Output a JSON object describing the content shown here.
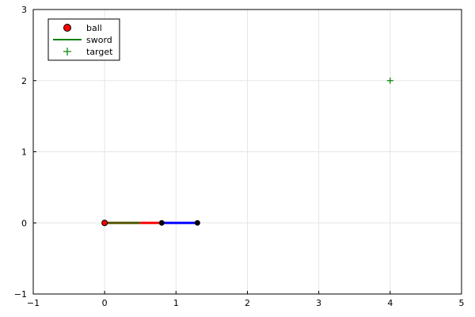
{
  "chart_data": {
    "type": "scatter",
    "title": "",
    "xlabel": "",
    "ylabel": "",
    "xlim": [
      -1,
      5
    ],
    "ylim": [
      -1,
      3
    ],
    "xticks": [
      -1,
      0,
      1,
      2,
      3,
      4,
      5
    ],
    "yticks": [
      -1,
      0,
      1,
      2,
      3
    ],
    "grid": true,
    "legend_position": "top-left",
    "legend": [
      {
        "label": "ball",
        "marker": "circle",
        "color": "#ff0000"
      },
      {
        "label": "sword",
        "marker": "line",
        "color": "#008000"
      },
      {
        "label": "target",
        "marker": "plus",
        "color": "#008000"
      }
    ],
    "segments": [
      {
        "x": [
          0,
          0.5
        ],
        "y": [
          0,
          0
        ],
        "color": "#555500"
      },
      {
        "x": [
          0.5,
          0.8
        ],
        "y": [
          0,
          0
        ],
        "color": "#ff0000"
      },
      {
        "x": [
          0.8,
          1.3
        ],
        "y": [
          0,
          0
        ],
        "color": "#0000ff"
      }
    ],
    "joints": {
      "x": [
        0.8,
        1.3
      ],
      "y": [
        0,
        0
      ],
      "color": "#000000"
    },
    "ball": {
      "x": 0,
      "y": 0,
      "color": "#ff0000"
    },
    "target": {
      "x": 4,
      "y": 2,
      "color": "#008000"
    }
  }
}
